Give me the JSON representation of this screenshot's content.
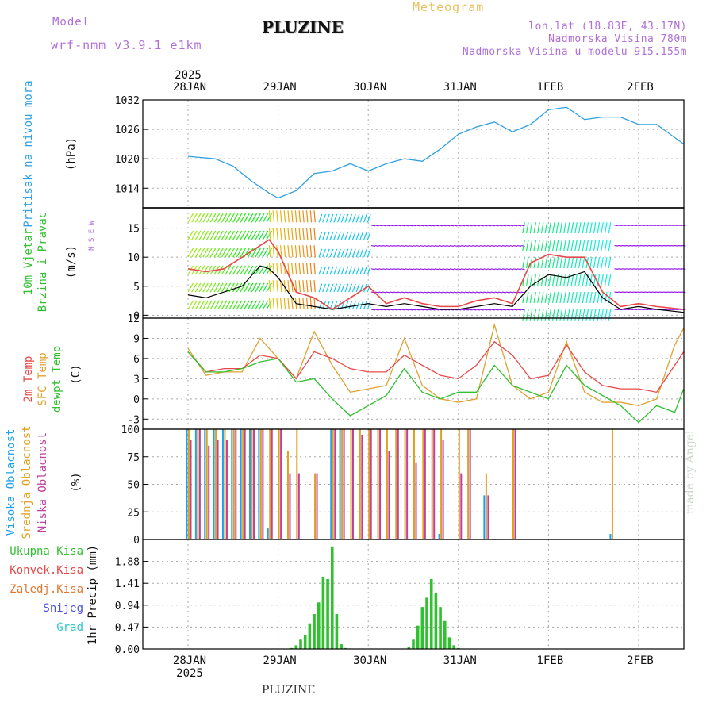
{
  "header": {
    "model_label": "Model",
    "model_name": "wrf-nmm_v3.9.1 e1km",
    "title": "PLUZINE",
    "meteogram_label": "Meteogram",
    "coords": "lon,lat (18.83E, 43.17N)",
    "elevation": "Nadmorska Visina 780m",
    "model_elevation": "Nadmorska Visina u modelu 915.155m"
  },
  "footer": {
    "station": "PLUZINE",
    "made_by": "made by Angel"
  },
  "colors": {
    "pressure": "#30a0e0",
    "temp2m": "#e84848",
    "sfc_temp": "#e0a030",
    "dewpt": "#30c030",
    "high_cloud": "#20a0e8",
    "mid_cloud": "#e0a020",
    "low_cloud": "#c040a0",
    "precip": "#30c030"
  },
  "time_axis": {
    "top_year": "2025",
    "bottom_year": "2025",
    "days": [
      "28JAN",
      "29JAN",
      "30JAN",
      "31JAN",
      "1FEB",
      "2FEB"
    ]
  },
  "chart_data": [
    {
      "type": "line",
      "name": "pressure",
      "ylabel_lines": [
        "Pritisak na nivou mora"
      ],
      "unit": "(hPa)",
      "ylim": [
        1010,
        1032
      ],
      "yticks": [
        1014,
        1020,
        1026,
        1032
      ],
      "x": [
        0,
        0.3,
        0.5,
        0.7,
        0.9,
        1.0,
        1.2,
        1.4,
        1.6,
        1.8,
        2.0,
        2.2,
        2.4,
        2.6,
        2.8,
        3.0,
        3.2,
        3.4,
        3.6,
        3.8,
        4.0,
        4.2,
        4.4,
        4.6,
        4.8,
        5.0,
        5.2,
        5.5
      ],
      "series": [
        {
          "values": [
            1020.5,
            1020,
            1018.5,
            1015.5,
            1013,
            1012,
            1013.5,
            1017,
            1017.5,
            1019,
            1017.5,
            1019,
            1020,
            1019.5,
            1022,
            1025,
            1026.5,
            1027.5,
            1025.5,
            1027,
            1030,
            1030.5,
            1028,
            1028.5,
            1028.5,
            1027,
            1027,
            1023
          ]
        }
      ]
    },
    {
      "type": "line",
      "name": "wind",
      "ylabel_lines": [
        "10m Vjetar",
        "Brzina i Pravac"
      ],
      "unit": "(m/s)",
      "compass": "N S E W",
      "ylim": [
        -0.5,
        18.5
      ],
      "yticks": [
        0,
        5,
        10,
        15
      ],
      "x": [
        0,
        0.2,
        0.4,
        0.6,
        0.8,
        0.9,
        1.0,
        1.2,
        1.4,
        1.6,
        1.8,
        2.0,
        2.2,
        2.4,
        2.6,
        2.8,
        3.0,
        3.2,
        3.4,
        3.6,
        3.8,
        4.0,
        4.2,
        4.4,
        4.6,
        4.8,
        5.0,
        5.2,
        5.5
      ],
      "series": [
        {
          "name": "speed",
          "values": [
            3.5,
            3,
            4,
            5,
            8.5,
            8,
            6.5,
            2,
            1.5,
            1,
            1.5,
            2,
            1.5,
            2,
            1.5,
            1,
            1,
            1.5,
            2,
            1.5,
            5,
            7,
            6.5,
            7.5,
            3,
            1,
            1.5,
            1,
            0.5
          ]
        },
        {
          "name": "gust",
          "values": [
            8,
            7.5,
            8,
            10,
            12,
            13,
            11,
            4,
            3,
            1,
            3,
            5,
            2,
            3,
            2,
            1.5,
            1.5,
            2.5,
            3,
            2,
            9,
            10.5,
            10,
            10,
            4,
            1.5,
            2,
            1.5,
            1
          ]
        }
      ]
    },
    {
      "type": "line",
      "name": "temperature",
      "ylabel_lines": [
        "2m Temp",
        "SFC Temp",
        "dewpt Temp"
      ],
      "unit": "(C)",
      "ylim": [
        -4.5,
        12
      ],
      "yticks": [
        -3,
        0,
        3,
        6,
        9,
        12
      ],
      "x": [
        0,
        0.2,
        0.4,
        0.6,
        0.8,
        1.0,
        1.2,
        1.4,
        1.6,
        1.8,
        2.0,
        2.2,
        2.4,
        2.6,
        2.8,
        3.0,
        3.2,
        3.4,
        3.6,
        3.8,
        4.0,
        4.2,
        4.4,
        4.6,
        4.8,
        5.0,
        5.2,
        5.4,
        5.5
      ],
      "series": [
        {
          "name": "2m Temp",
          "values": [
            7,
            4,
            4.5,
            4.5,
            6.5,
            6,
            3,
            7,
            6,
            4.5,
            4,
            4,
            6.5,
            5,
            3.5,
            3,
            5,
            8.5,
            6.5,
            3,
            3.5,
            8,
            4,
            2,
            1.5,
            1.5,
            1,
            5,
            7
          ]
        },
        {
          "name": "SFC Temp",
          "values": [
            7.5,
            3.5,
            4,
            4,
            9,
            6,
            3,
            10,
            5,
            1,
            1.5,
            2,
            9,
            2,
            0,
            -0.5,
            0,
            11,
            2,
            0,
            1,
            8.5,
            1,
            -0.5,
            -0.5,
            -1,
            0,
            8,
            10.5
          ]
        },
        {
          "name": "dewpt Temp",
          "values": [
            7,
            4,
            4,
            4.5,
            5.5,
            6,
            2.5,
            3,
            0,
            -2.5,
            -1,
            0.5,
            4.5,
            1,
            0,
            1,
            1,
            5,
            2,
            1,
            0,
            5,
            2,
            0.5,
            -1,
            -3.5,
            -1,
            -2,
            1.5
          ]
        }
      ]
    },
    {
      "type": "bar",
      "name": "cloud",
      "ylabel_lines": [
        "Visoka Oblacnost",
        "Srednja Oblacnost",
        "Niska Oblacnost"
      ],
      "unit": "(%)",
      "ylim": [
        0,
        100
      ],
      "yticks": [
        0,
        25,
        50,
        75,
        100
      ],
      "x": [
        0,
        0.1,
        0.2,
        0.3,
        0.4,
        0.5,
        0.6,
        0.7,
        0.8,
        0.9,
        1.0,
        1.1,
        1.2,
        1.4,
        1.6,
        1.7,
        1.8,
        1.9,
        2.0,
        2.1,
        2.2,
        2.3,
        2.4,
        2.5,
        2.6,
        2.7,
        2.8,
        3.0,
        3.1,
        3.3,
        3.6,
        4.0,
        4.5,
        4.7
      ],
      "series": [
        {
          "name": "Visoka Oblacnost",
          "values": [
            100,
            100,
            100,
            100,
            100,
            100,
            100,
            100,
            100,
            10,
            0,
            0,
            0,
            0,
            100,
            100,
            0,
            0,
            0,
            0,
            0,
            0,
            0,
            0,
            0,
            0,
            5,
            0,
            0,
            40,
            0,
            0,
            0,
            5
          ]
        },
        {
          "name": "Srednja Oblacnost",
          "values": [
            100,
            100,
            100,
            100,
            100,
            100,
            100,
            100,
            100,
            100,
            100,
            80,
            100,
            60,
            100,
            100,
            100,
            100,
            100,
            100,
            100,
            100,
            100,
            100,
            100,
            100,
            100,
            100,
            100,
            60,
            100,
            0,
            0,
            100
          ]
        },
        {
          "name": "Niska Oblacnost",
          "values": [
            90,
            100,
            85,
            90,
            90,
            100,
            100,
            100,
            100,
            100,
            100,
            60,
            60,
            60,
            100,
            100,
            100,
            95,
            100,
            100,
            80,
            100,
            100,
            70,
            100,
            100,
            90,
            60,
            100,
            40,
            100,
            0,
            0,
            0
          ]
        }
      ]
    },
    {
      "type": "bar",
      "name": "precip",
      "legend": [
        "Ukupna Kisa",
        "Konvek.Kisa",
        "Zaledj.Kisa",
        "Snijeg",
        "Grad"
      ],
      "unit": "1hr Precip (mm)",
      "ylim": [
        0,
        2.35
      ],
      "yticks": [
        0,
        0.47,
        0.94,
        1.41,
        1.88
      ],
      "x": [
        1.15,
        1.2,
        1.25,
        1.3,
        1.35,
        1.4,
        1.45,
        1.5,
        1.55,
        1.6,
        1.65,
        1.7,
        1.75,
        1.8,
        2.45,
        2.5,
        2.55,
        2.6,
        2.65,
        2.7,
        2.75,
        2.8,
        2.85,
        2.9,
        2.95,
        3.0
      ],
      "series": [
        {
          "name": "Ukupna Kisa",
          "values": [
            0.02,
            0.08,
            0.2,
            0.3,
            0.55,
            0.75,
            1.0,
            1.55,
            1.5,
            2.2,
            0.75,
            0.1,
            0.02,
            0.01,
            0.05,
            0.2,
            0.5,
            0.9,
            1.1,
            1.5,
            1.2,
            0.9,
            0.6,
            0.25,
            0.08,
            0.02
          ]
        }
      ]
    }
  ]
}
